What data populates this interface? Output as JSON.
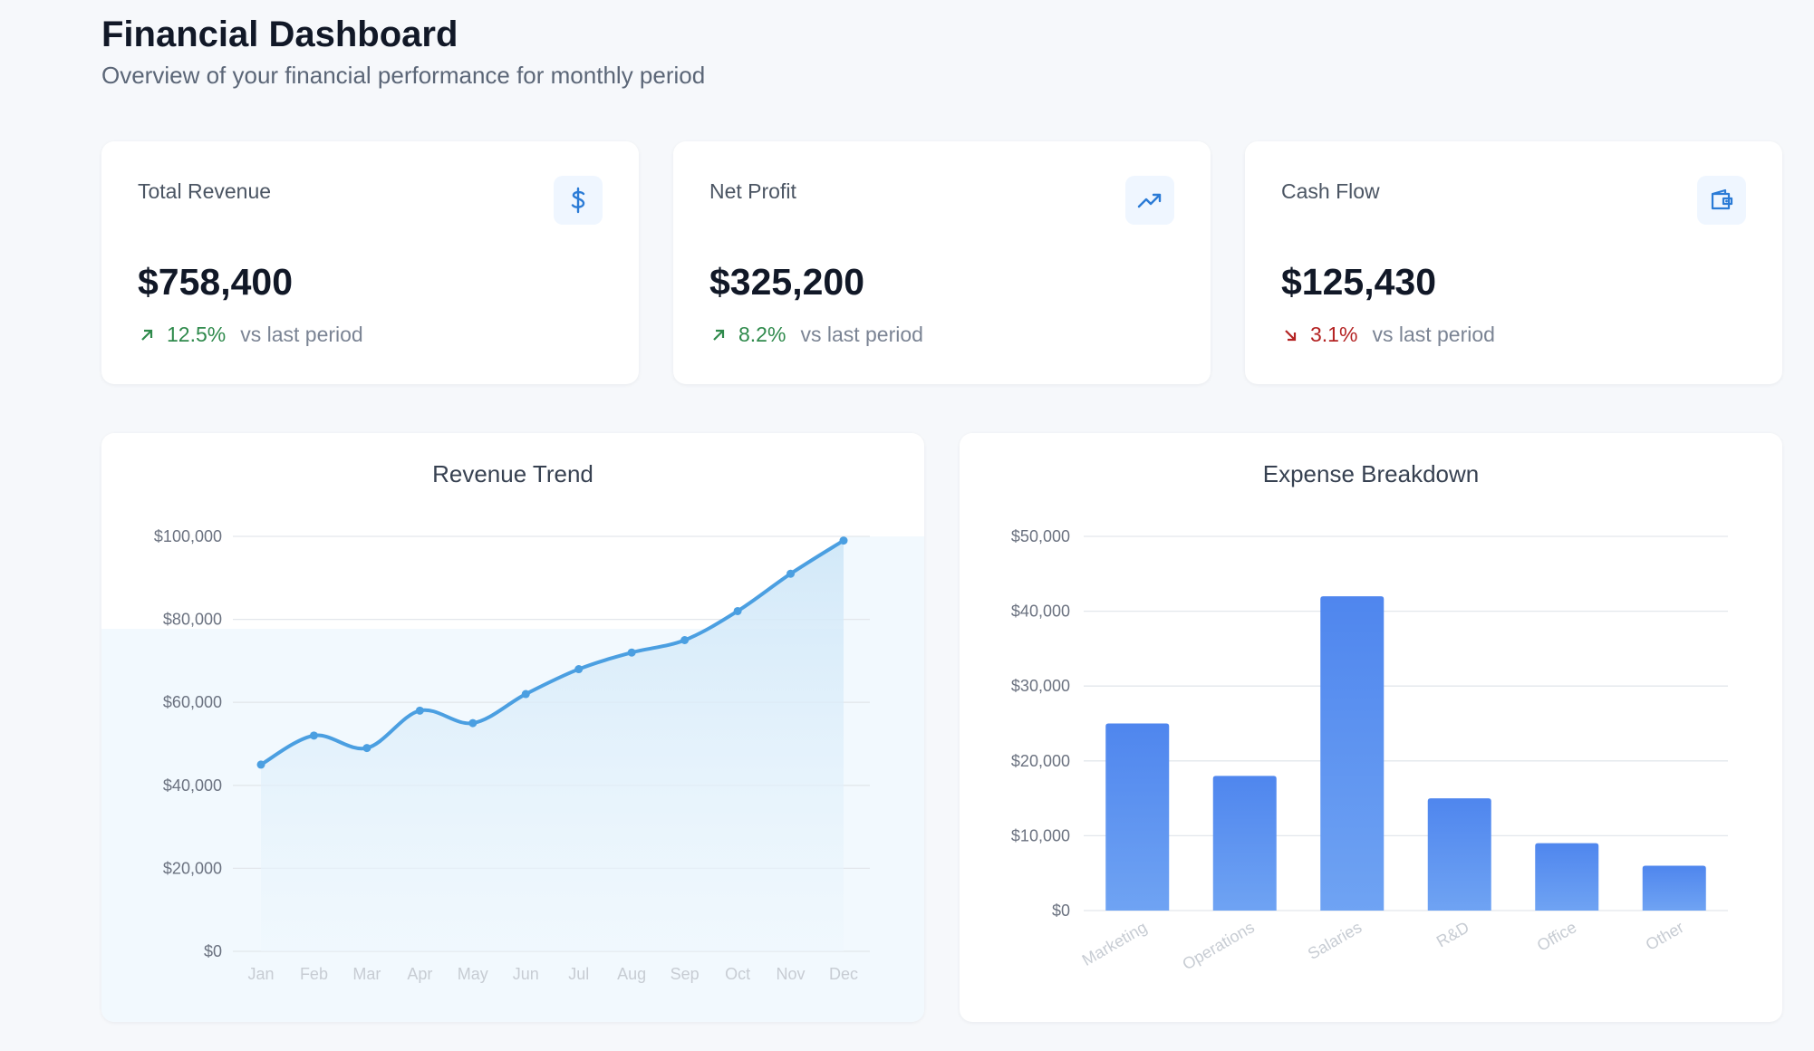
{
  "header": {
    "title": "Financial Dashboard",
    "subtitle": "Overview of your financial performance for monthly period"
  },
  "kpis": [
    {
      "label": "Total Revenue",
      "value": "$758,400",
      "change": "12.5%",
      "direction": "up",
      "comparison": "vs last period",
      "icon": "dollar-icon"
    },
    {
      "label": "Net Profit",
      "value": "$325,200",
      "change": "8.2%",
      "direction": "up",
      "comparison": "vs last period",
      "icon": "trending-up-icon"
    },
    {
      "label": "Cash Flow",
      "value": "$125,430",
      "change": "3.1%",
      "direction": "down",
      "comparison": "vs last period",
      "icon": "wallet-icon"
    }
  ],
  "colors": {
    "accent": "#4b9fe1",
    "bar": "#4f86ee",
    "positive": "#2f8a4c",
    "negative": "#b42323"
  },
  "chart_data": [
    {
      "type": "area",
      "title": "Revenue Trend",
      "categories": [
        "Jan",
        "Feb",
        "Mar",
        "Apr",
        "May",
        "Jun",
        "Jul",
        "Aug",
        "Sep",
        "Oct",
        "Nov",
        "Dec"
      ],
      "series": [
        {
          "values": [
            45000,
            52000,
            49000,
            58000,
            55000,
            62000,
            68000,
            72000,
            75000,
            82000,
            91000,
            99000
          ]
        }
      ],
      "yticks": [
        "$0",
        "$20,000",
        "$40,000",
        "$60,000",
        "$80,000",
        "$100,000"
      ],
      "ylim": [
        0,
        100000
      ],
      "grid": true
    },
    {
      "type": "bar",
      "title": "Expense Breakdown",
      "categories": [
        "Marketing",
        "Operations",
        "Salaries",
        "R&D",
        "Office",
        "Other"
      ],
      "values": [
        25000,
        18000,
        42000,
        15000,
        9000,
        6000
      ],
      "yticks": [
        "$0",
        "$10,000",
        "$20,000",
        "$30,000",
        "$40,000",
        "$50,000"
      ],
      "ylim": [
        0,
        50000
      ],
      "grid": true
    }
  ]
}
